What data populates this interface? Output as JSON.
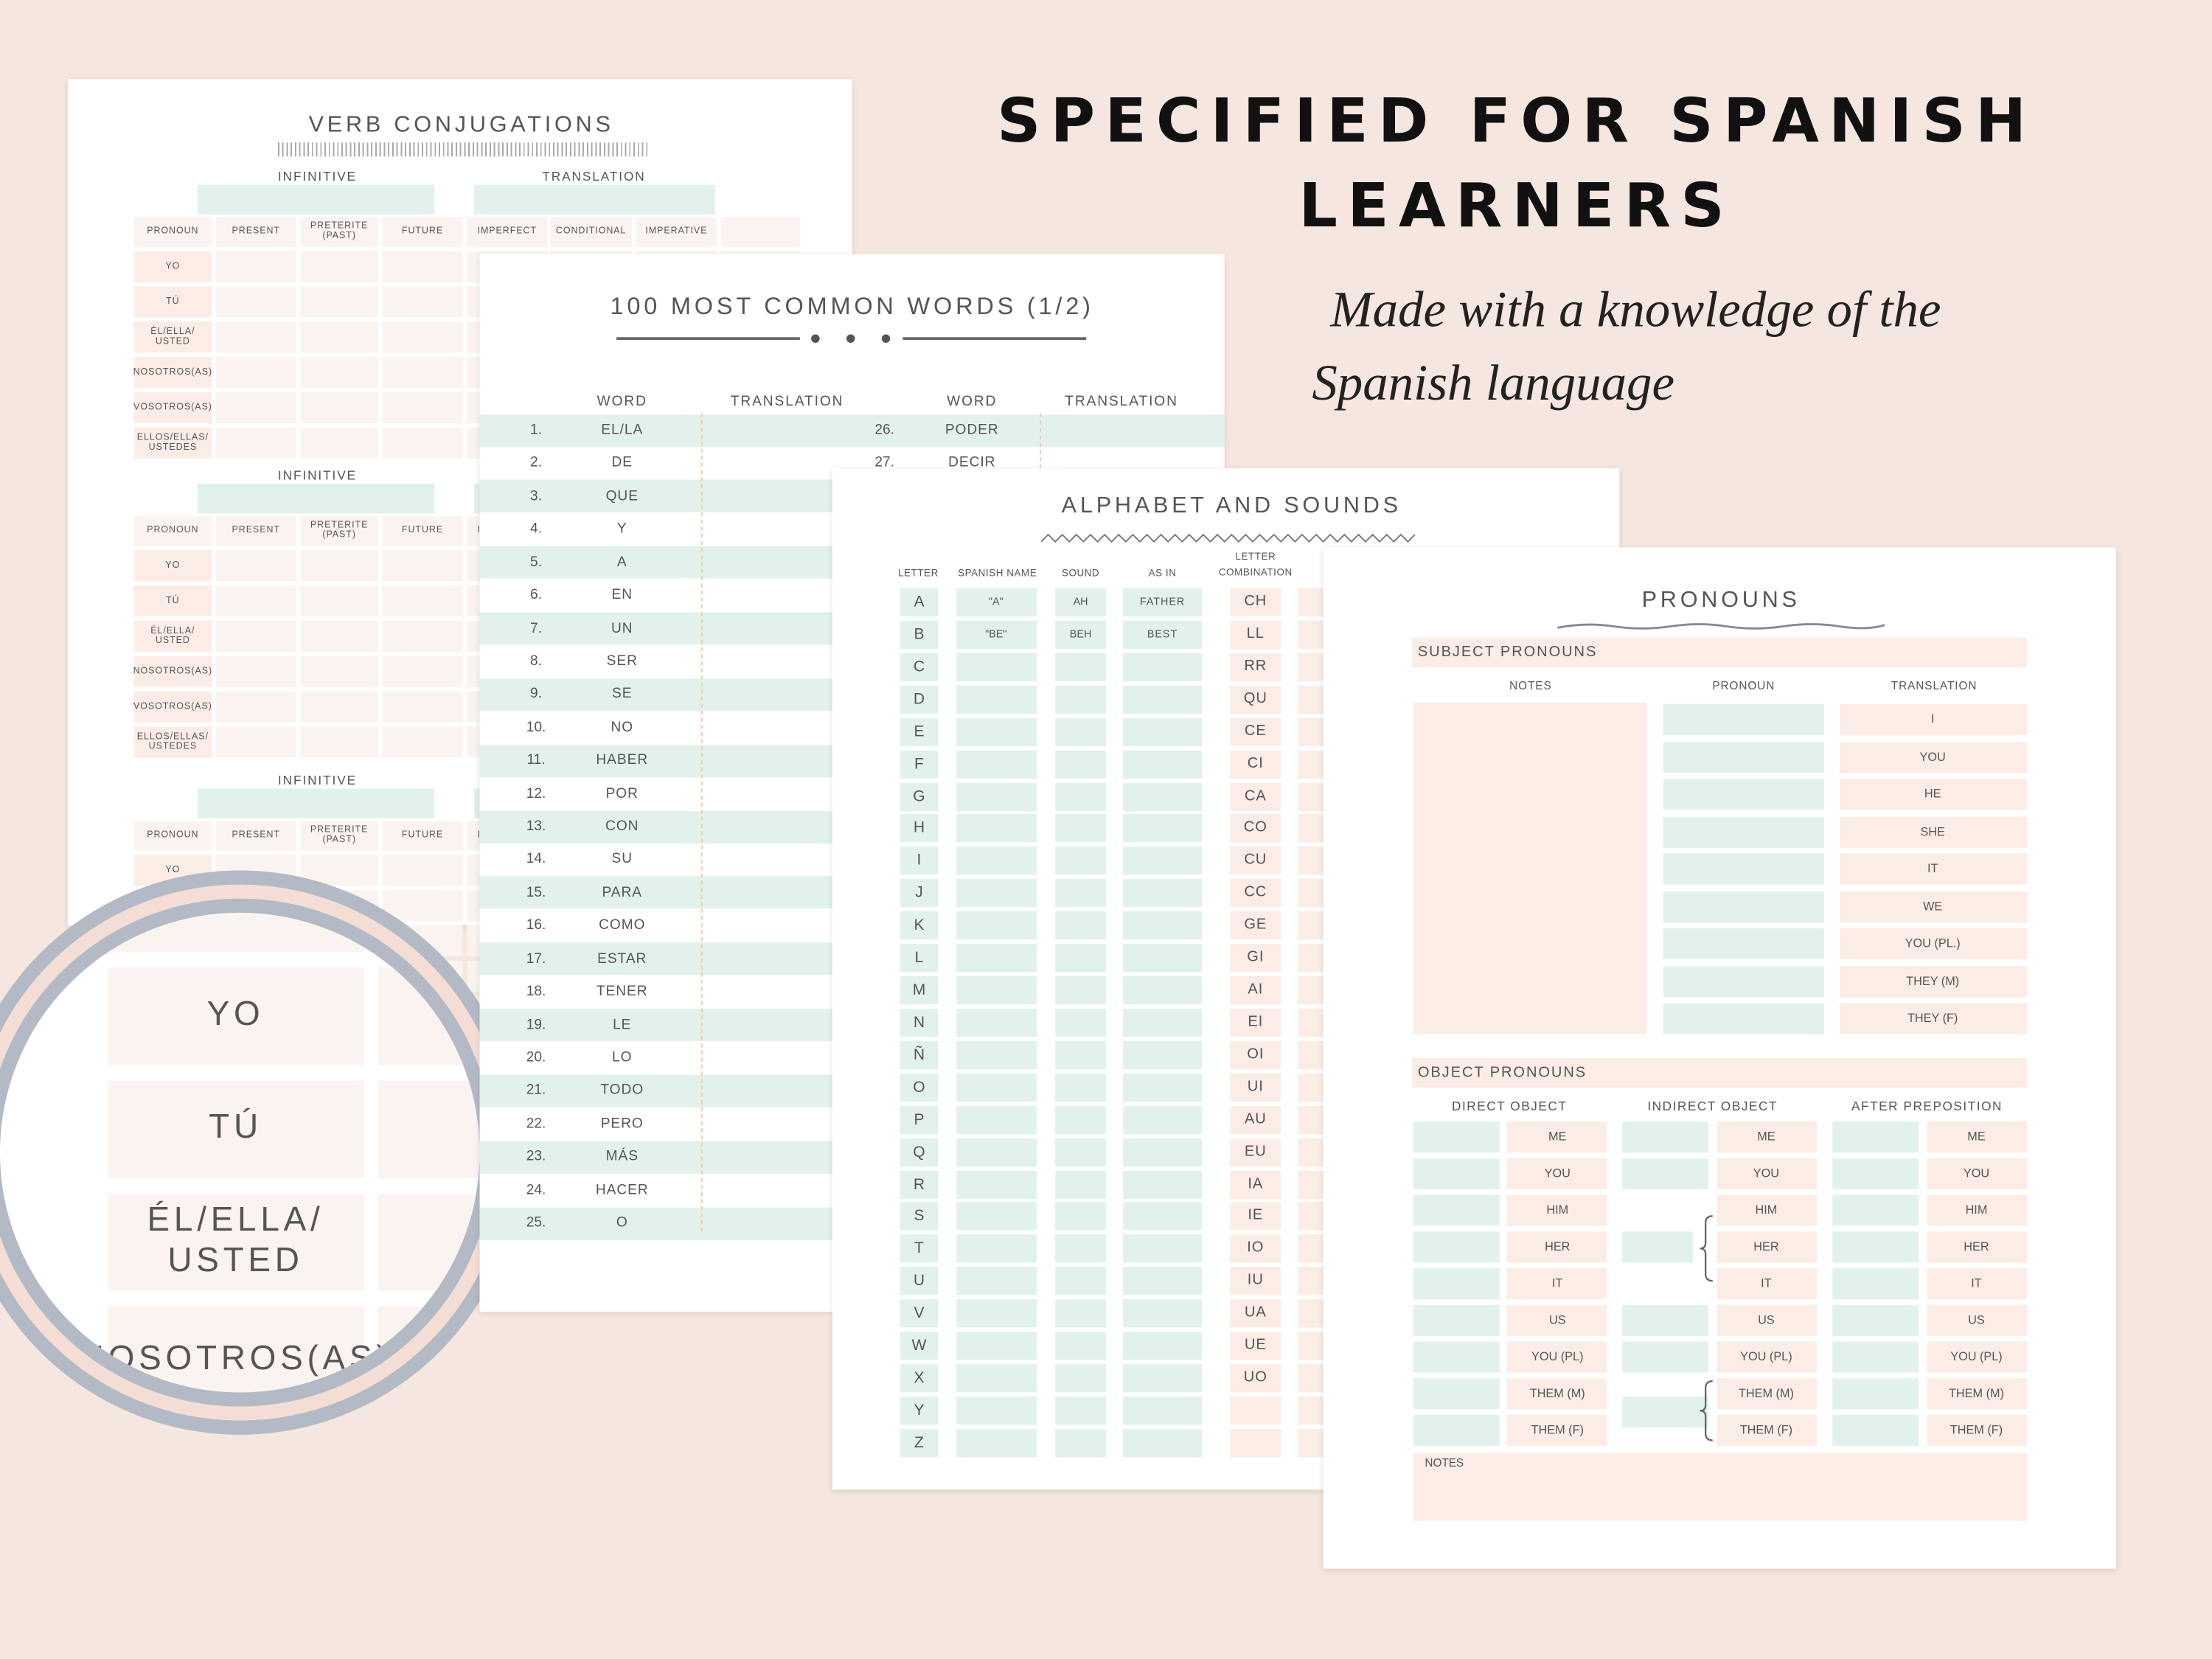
{
  "heading": {
    "title_lines": [
      "SPECIFIED FOR SPANISH",
      "LEARNERS"
    ],
    "subtitle_lines": [
      "Made with a knowledge of the",
      "Spanish language"
    ]
  },
  "verb_page": {
    "title": "VERB CONJUGATIONS",
    "infinitive": "INFINITIVE",
    "translation": "TRANSLATION",
    "columns": [
      "PRONOUN",
      "PRESENT",
      "PRETERITE\n(PAST)",
      "FUTURE",
      "IMPERFECT",
      "CONDITIONAL",
      "IMPERATIVE"
    ],
    "pronouns": [
      "YO",
      "TÚ",
      "ÉL/ELLA/\nUSTED",
      "NOSOTROS(AS)",
      "VOSOTROS(AS)",
      "ELLOS/ELLAS/\nUSTEDES"
    ]
  },
  "words_page": {
    "title": "100 MOST COMMON WORDS (1/2)",
    "headers": [
      "WORD",
      "TRANSLATION"
    ],
    "column_1": [
      {
        "n": "1.",
        "word": "EL/LA"
      },
      {
        "n": "2.",
        "word": "DE"
      },
      {
        "n": "3.",
        "word": "QUE"
      },
      {
        "n": "4.",
        "word": "Y"
      },
      {
        "n": "5.",
        "word": "A"
      },
      {
        "n": "6.",
        "word": "EN"
      },
      {
        "n": "7.",
        "word": "UN"
      },
      {
        "n": "8.",
        "word": "SER"
      },
      {
        "n": "9.",
        "word": "SE"
      },
      {
        "n": "10.",
        "word": "NO"
      },
      {
        "n": "11.",
        "word": "HABER"
      },
      {
        "n": "12.",
        "word": "POR"
      },
      {
        "n": "13.",
        "word": "CON"
      },
      {
        "n": "14.",
        "word": "SU"
      },
      {
        "n": "15.",
        "word": "PARA"
      },
      {
        "n": "16.",
        "word": "COMO"
      },
      {
        "n": "17.",
        "word": "ESTAR"
      },
      {
        "n": "18.",
        "word": "TENER"
      },
      {
        "n": "19.",
        "word": "LE"
      },
      {
        "n": "20.",
        "word": "LO"
      },
      {
        "n": "21.",
        "word": "TODO"
      },
      {
        "n": "22.",
        "word": "PERO"
      },
      {
        "n": "23.",
        "word": "MÁS"
      },
      {
        "n": "24.",
        "word": "HACER"
      },
      {
        "n": "25.",
        "word": "O"
      }
    ],
    "column_2": [
      {
        "n": "26.",
        "word": "PODER"
      },
      {
        "n": "27.",
        "word": "DECIR"
      }
    ]
  },
  "alphabet_page": {
    "title": "ALPHABET AND SOUNDS",
    "headers": [
      "LETTER",
      "SPANISH NAME",
      "SOUND",
      "AS IN",
      "LETTER\nCOMBINATION"
    ],
    "letters": [
      "A",
      "B",
      "C",
      "D",
      "E",
      "F",
      "G",
      "H",
      "I",
      "J",
      "K",
      "L",
      "M",
      "N",
      "Ñ",
      "O",
      "P",
      "Q",
      "R",
      "S",
      "T",
      "U",
      "V",
      "W",
      "X",
      "Y",
      "Z"
    ],
    "examples": [
      {
        "name": "\"A\"",
        "sound": "AH",
        "as_in": "FATHER"
      },
      {
        "name": "\"BE\"",
        "sound": "BEH",
        "as_in": "BEST"
      }
    ],
    "combinations": [
      "CH",
      "LL",
      "RR",
      "QU",
      "CE",
      "CI",
      "CA",
      "CO",
      "CU",
      "CC",
      "GE",
      "GI",
      "AI",
      "EI",
      "OI",
      "UI",
      "AU",
      "EU",
      "IA",
      "IE",
      "IO",
      "IU",
      "UA",
      "UE",
      "UO"
    ]
  },
  "pronouns_page": {
    "title": "PRONOUNS",
    "subject_heading": "SUBJECT PRONOUNS",
    "subject_columns": [
      "NOTES",
      "PRONOUN",
      "TRANSLATION"
    ],
    "subject_translations": [
      "I",
      "YOU",
      "HE",
      "SHE",
      "IT",
      "WE",
      "YOU (PL.)",
      "THEY (M)",
      "THEY (F)"
    ],
    "object_heading": "OBJECT PRONOUNS",
    "object_columns": [
      "DIRECT OBJECT",
      "INDIRECT OBJECT",
      "AFTER PREPOSITION"
    ],
    "object_rows": [
      "ME",
      "YOU",
      "HIM",
      "HER",
      "IT",
      "US",
      "YOU (PL)",
      "THEM (M)",
      "THEM (F)"
    ],
    "notes": "NOTES"
  }
}
